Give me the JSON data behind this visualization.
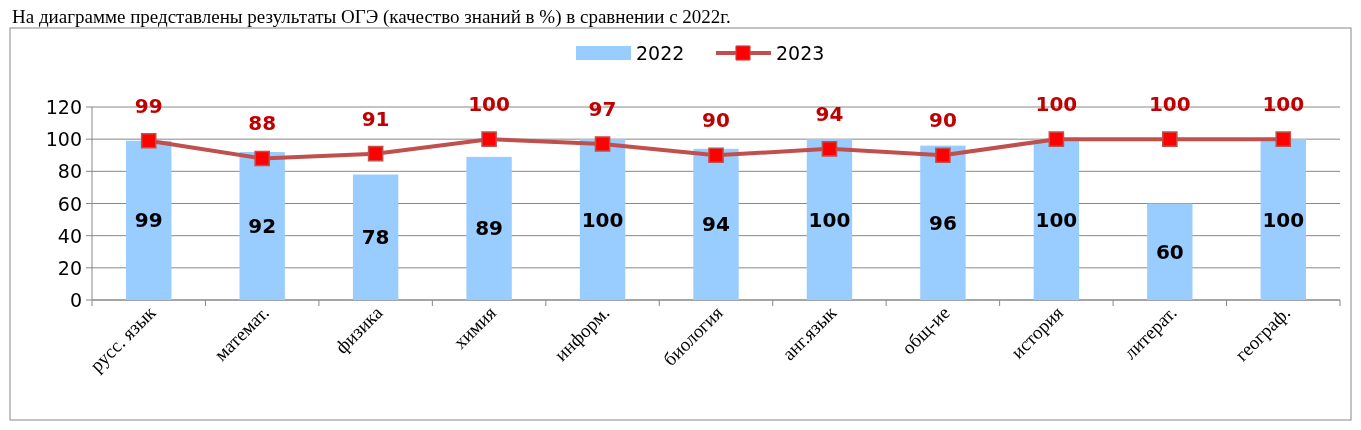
{
  "chart_data": {
    "type": "bar",
    "title": "На диаграмме представлены результаты ОГЭ (качество знаний в %) в сравнении с 2022г.",
    "categories": [
      "русс. язык",
      "математ.",
      "физика",
      "химия",
      "информ.",
      "биология",
      "анг.язык",
      "общ-ие",
      "история",
      "литерат.",
      "географ."
    ],
    "series": [
      {
        "name": "2022",
        "color": "#99ccff",
        "values": [
          99,
          92,
          78,
          89,
          100,
          94,
          100,
          96,
          100,
          60,
          100
        ]
      },
      {
        "name": "2023",
        "type": "line",
        "color": "#c0504d",
        "values": [
          99,
          88,
          91,
          100,
          97,
          90,
          94,
          90,
          100,
          100,
          100
        ]
      }
    ],
    "ylim": [
      0,
      120
    ],
    "yticks": [
      0,
      20,
      40,
      60,
      80,
      100,
      120
    ],
    "grid": "y",
    "legend": "top",
    "marker": "square",
    "line_style": "solid",
    "data_labels": true
  }
}
